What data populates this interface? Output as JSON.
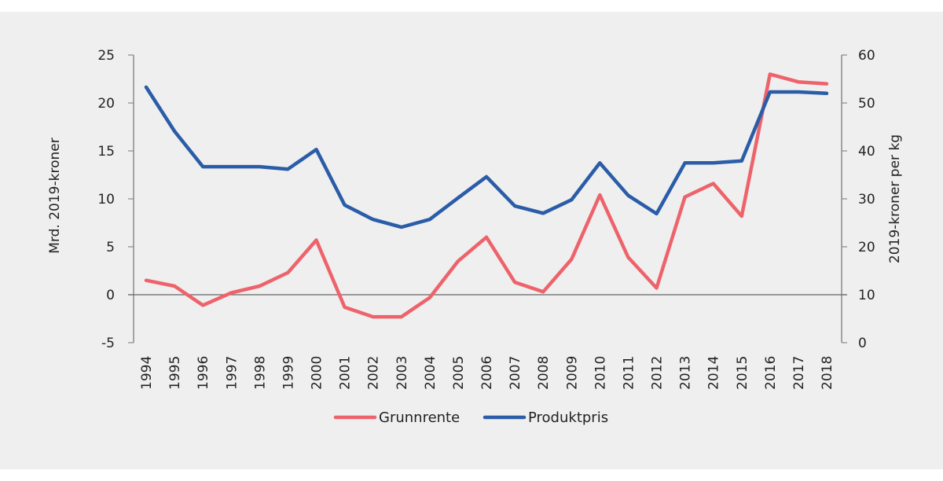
{
  "chart_data": {
    "type": "line",
    "title": "",
    "x": [
      "1994",
      "1995",
      "1996",
      "1997",
      "1998",
      "1999",
      "2000",
      "2001",
      "2002",
      "2003",
      "2004",
      "2005",
      "2006",
      "2007",
      "2008",
      "2009",
      "2010",
      "2011",
      "2012",
      "2013",
      "2014",
      "2015",
      "2016",
      "2017",
      "2018"
    ],
    "ylabel_left": "Mrd.  2019-kroner",
    "ylabel_right": "2019-kroner per kg",
    "ylim_left": [
      -5,
      25
    ],
    "ylim_right": [
      0,
      60
    ],
    "yticks_left": [
      "-5",
      "0",
      "5",
      "10",
      "15",
      "20",
      "25"
    ],
    "yticks_right": [
      "0",
      "10",
      "20",
      "30",
      "40",
      "50",
      "60"
    ],
    "grid": false,
    "legend_position": "bottom-center",
    "series": [
      {
        "name": "Grunnrente",
        "axis": "left",
        "color": "#ee636b",
        "values": [
          1.5,
          0.9,
          -1.1,
          0.2,
          0.9,
          2.3,
          5.7,
          -1.3,
          -2.3,
          -2.3,
          -0.3,
          3.5,
          6.0,
          1.3,
          0.3,
          3.7,
          10.4,
          3.9,
          0.7,
          10.2,
          11.6,
          8.2,
          23.0,
          22.2,
          22.0
        ]
      },
      {
        "name": "Produktpris",
        "axis": "right",
        "color": "#2a5ca8",
        "values": [
          53.3,
          44.1,
          36.7,
          36.7,
          36.7,
          36.2,
          40.3,
          28.7,
          25.7,
          24.1,
          25.7,
          30.2,
          34.6,
          28.5,
          27.0,
          29.8,
          37.5,
          30.7,
          26.9,
          37.5,
          37.5,
          37.9,
          52.3,
          52.3,
          52.0
        ]
      }
    ]
  }
}
